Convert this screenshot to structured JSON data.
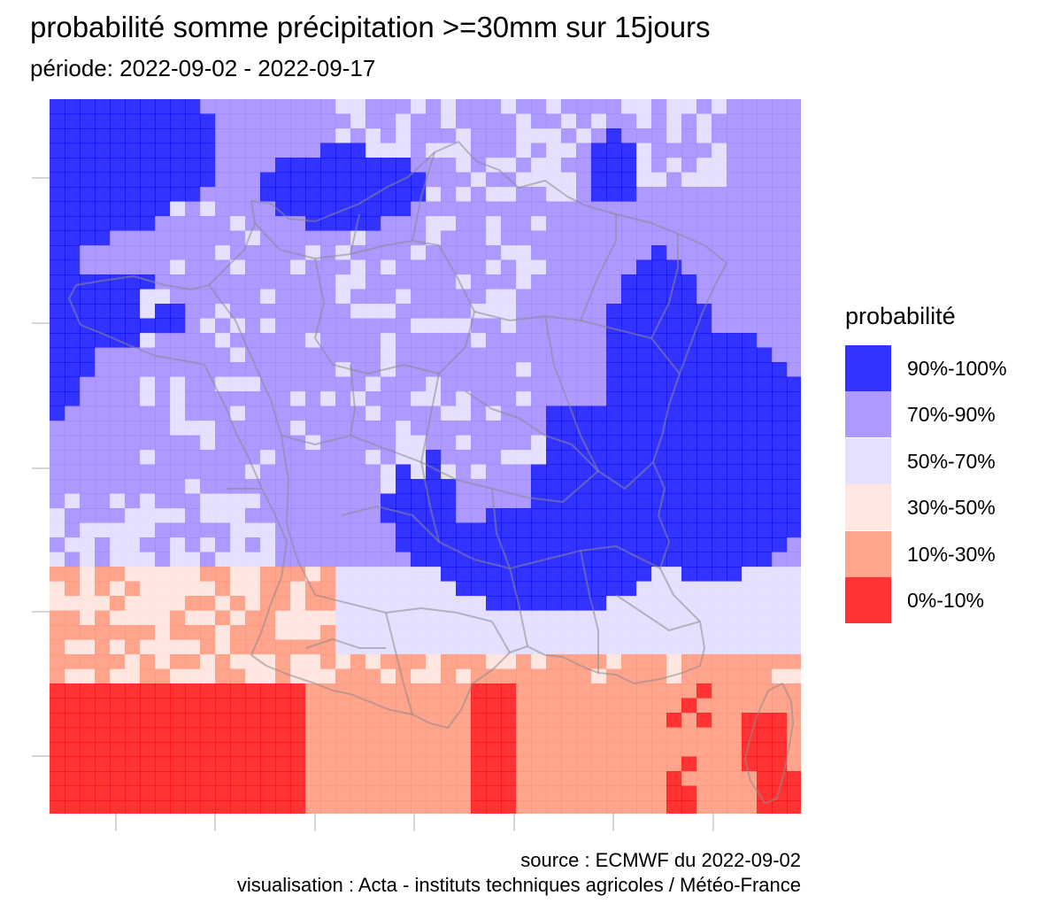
{
  "title": "probabilité somme précipitation >=30mm sur 15jours",
  "subtitle": "période: 2022-09-02 - 2022-09-17",
  "legend": {
    "title": "probabilité",
    "items": [
      {
        "label": "90%-100%",
        "color": "#0000FF"
      },
      {
        "label": "70%-90%",
        "color": "#9980FF"
      },
      {
        "label": "50%-70%",
        "color": "#E0D8FF"
      },
      {
        "label": "30%-50%",
        "color": "#FFE0D8"
      },
      {
        "label": "10%-30%",
        "color": "#FF8E72"
      },
      {
        "label": "0%-10%",
        "color": "#FF0000"
      }
    ]
  },
  "caption": {
    "source": "source : ECMWF du 2022-09-02",
    "visualisation": "visualisation : Acta - instituts techniques agricoles / Météo-France"
  },
  "colors": {
    "background": "#FFFFFF",
    "borders": "#8A8A8A",
    "grid": "#D6D6D6"
  }
}
